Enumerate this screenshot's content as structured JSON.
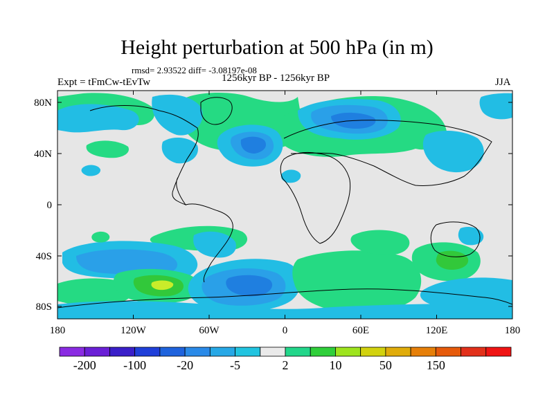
{
  "title": "Height perturbation at 500 hPa (in m)",
  "stats": "rmsd= 2.93522 diff= -3.08197e-08",
  "experiment": "Expt = tFmCw-tEvTw",
  "period": "1256kyr BP - 1256kyr BP",
  "season": "JJA",
  "lat_labels": [
    "80N",
    "40N",
    "0",
    "40S",
    "80S"
  ],
  "lon_labels": [
    "180",
    "120W",
    "60W",
    "0",
    "60E",
    "120E",
    "180"
  ],
  "colorbar": {
    "colors": [
      "#8a2be2",
      "#6a1fd6",
      "#3a1fc9",
      "#1f3fd9",
      "#1f63dd",
      "#2a8ae8",
      "#27a8e6",
      "#21c4e0",
      "#eaeaea",
      "#22d68a",
      "#2fcf3a",
      "#9ee41e",
      "#d2d20e",
      "#e0ac0a",
      "#e67f08",
      "#e65a0a",
      "#e2301a",
      "#f01414"
    ],
    "labels": [
      "-200",
      "-100",
      "-20",
      "-5",
      "2",
      "10",
      "50",
      "150"
    ]
  },
  "palette": {
    "neutral": "#e6e6e6",
    "cyan": "#22bde4",
    "blue_light": "#2aa0e8",
    "blue_mid": "#1f7fe0",
    "blue_dark": "#1f5fd8",
    "green": "#25da83",
    "green_dark": "#32c83a",
    "lime": "#c9ec2a"
  }
}
